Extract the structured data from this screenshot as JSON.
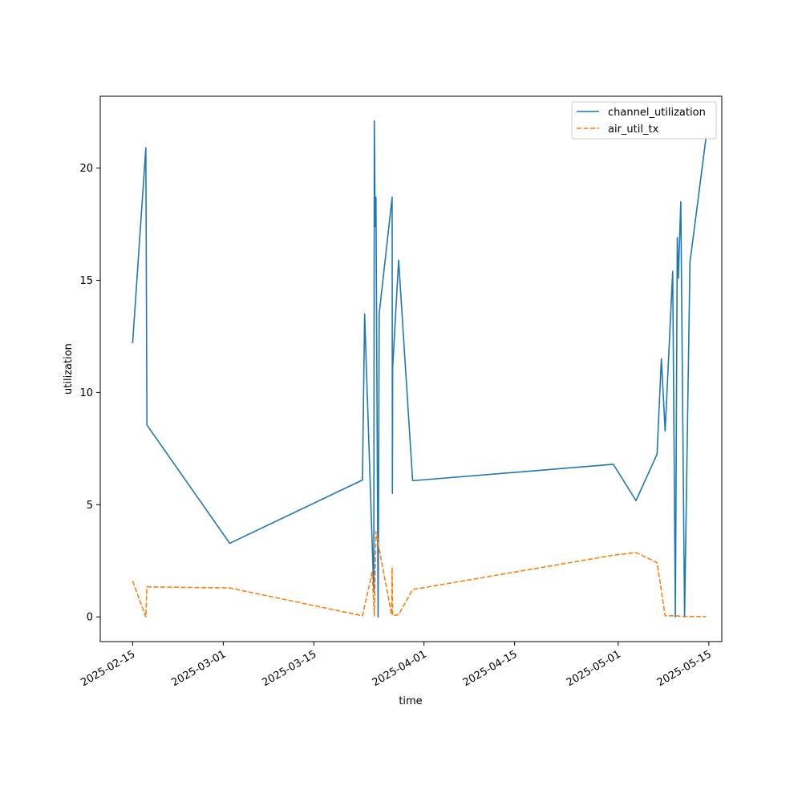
{
  "chart_data": {
    "type": "line",
    "title": "",
    "xlabel": "time",
    "ylabel": "utilization",
    "x_ticks": [
      "2025-02-15",
      "2025-03-01",
      "2025-03-15",
      "2025-04-01",
      "2025-04-15",
      "2025-05-01",
      "2025-05-15"
    ],
    "y_ticks": [
      0,
      5,
      10,
      15,
      20
    ],
    "xlim": [
      "2025-02-10",
      "2025-05-17"
    ],
    "ylim": [
      -1.1,
      23.2
    ],
    "grid": false,
    "legend_position": "top-right",
    "series": [
      {
        "name": "channel_utilization",
        "color": "#1f77b4",
        "dash": "solid",
        "points": [
          {
            "x": "2025-02-15T00:00",
            "y": 12.2
          },
          {
            "x": "2025-02-17T01:00",
            "y": 20.9
          },
          {
            "x": "2025-02-17T05:00",
            "y": 8.55
          },
          {
            "x": "2025-03-02T00:00",
            "y": 3.28
          },
          {
            "x": "2025-03-22T12:00",
            "y": 6.1
          },
          {
            "x": "2025-03-22T20:00",
            "y": 13.5
          },
          {
            "x": "2025-03-24T06:00",
            "y": 1.1
          },
          {
            "x": "2025-03-24T08:00",
            "y": 22.1
          },
          {
            "x": "2025-03-24T11:00",
            "y": 17.4
          },
          {
            "x": "2025-03-24T14:00",
            "y": 18.7
          },
          {
            "x": "2025-03-24T22:00",
            "y": 0.0
          },
          {
            "x": "2025-03-25T02:00",
            "y": 13.5
          },
          {
            "x": "2025-03-27T02:00",
            "y": 18.7
          },
          {
            "x": "2025-03-27T03:00",
            "y": 5.5
          },
          {
            "x": "2025-03-27T04:00",
            "y": 11.1
          },
          {
            "x": "2025-03-28T02:00",
            "y": 15.9
          },
          {
            "x": "2025-03-30T06:00",
            "y": 6.07
          },
          {
            "x": "2025-04-30T06:00",
            "y": 6.8
          },
          {
            "x": "2025-05-03T18:00",
            "y": 5.18
          },
          {
            "x": "2025-05-07T00:00",
            "y": 7.25
          },
          {
            "x": "2025-05-07T16:00",
            "y": 11.5
          },
          {
            "x": "2025-05-08T06:00",
            "y": 8.28
          },
          {
            "x": "2025-05-09T10:00",
            "y": 15.4
          },
          {
            "x": "2025-05-09T20:00",
            "y": 0.0
          },
          {
            "x": "2025-05-10T03:00",
            "y": 16.9
          },
          {
            "x": "2025-05-10T07:00",
            "y": 15.1
          },
          {
            "x": "2025-05-10T16:00",
            "y": 18.5
          },
          {
            "x": "2025-05-11T06:00",
            "y": 0.0
          },
          {
            "x": "2025-05-12T02:00",
            "y": 15.8
          },
          {
            "x": "2025-05-14T14:00",
            "y": 21.4
          }
        ]
      },
      {
        "name": "air_util_tx",
        "color": "#ff7f0e",
        "dash": "dashed",
        "points": [
          {
            "x": "2025-02-15T00:00",
            "y": 1.6
          },
          {
            "x": "2025-02-17T01:00",
            "y": 0.0
          },
          {
            "x": "2025-02-17T05:00",
            "y": 1.34
          },
          {
            "x": "2025-03-02T00:00",
            "y": 1.29
          },
          {
            "x": "2025-03-22T12:00",
            "y": 0.05
          },
          {
            "x": "2025-03-24T00:00",
            "y": 2.0
          },
          {
            "x": "2025-03-24T08:00",
            "y": 0.05
          },
          {
            "x": "2025-03-24T14:00",
            "y": 3.8
          },
          {
            "x": "2025-03-27T00:00",
            "y": 0.1
          },
          {
            "x": "2025-03-27T02:00",
            "y": 2.2
          },
          {
            "x": "2025-03-27T04:00",
            "y": 0.05
          },
          {
            "x": "2025-03-28T02:00",
            "y": 0.1
          },
          {
            "x": "2025-03-30T06:00",
            "y": 1.22
          },
          {
            "x": "2025-04-30T06:00",
            "y": 2.75
          },
          {
            "x": "2025-05-03T18:00",
            "y": 2.87
          },
          {
            "x": "2025-05-07T00:00",
            "y": 2.42
          },
          {
            "x": "2025-05-08T06:00",
            "y": 0.05
          },
          {
            "x": "2025-05-09T20:00",
            "y": 0.05
          },
          {
            "x": "2025-05-11T06:00",
            "y": 0.02
          },
          {
            "x": "2025-05-14T14:00",
            "y": 0.02
          }
        ]
      }
    ]
  }
}
